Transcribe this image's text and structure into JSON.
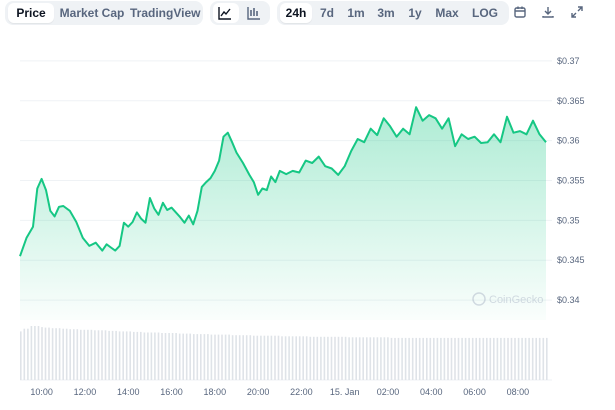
{
  "toolbar": {
    "view_tabs": [
      "Price",
      "Market Cap",
      "TradingView"
    ],
    "chart_types": [
      {
        "name": "line-chart-icon",
        "active": true
      },
      {
        "name": "candlestick-chart-icon",
        "active": false
      }
    ],
    "ranges": [
      "24h",
      "7d",
      "1m",
      "3m",
      "1y",
      "Max",
      "LOG"
    ],
    "active_range": "24h",
    "active_view": "Price",
    "actions": [
      "calendar-icon",
      "download-icon",
      "fullscreen-icon"
    ]
  },
  "watermark": "CoinGecko",
  "colors": {
    "line": "#16c784",
    "fill": "#16c784",
    "volume": "#dfe3e8",
    "grid": "#eff2f5"
  },
  "chart_data": {
    "type": "line",
    "ylim": [
      0.3375,
      0.3725
    ],
    "y_ticks": [
      "$0.37",
      "$0.365",
      "$0.36",
      "$0.355",
      "$0.35",
      "$0.345",
      "$0.34"
    ],
    "y_tick_values": [
      0.37,
      0.365,
      0.36,
      0.355,
      0.35,
      0.345,
      0.34
    ],
    "x_ticks": [
      "10:00",
      "12:00",
      "14:00",
      "16:00",
      "18:00",
      "20:00",
      "22:00",
      "15. Jan",
      "02:00",
      "04:00",
      "06:00",
      "08:00"
    ],
    "x_tick_hours": [
      10,
      12,
      14,
      16,
      18,
      20,
      22,
      24,
      26,
      28,
      30,
      32
    ],
    "x_range_hours": [
      9.0,
      33.3
    ],
    "x": [
      9.0,
      9.3,
      9.6,
      9.8,
      10.0,
      10.2,
      10.4,
      10.6,
      10.8,
      11.0,
      11.3,
      11.6,
      11.9,
      12.2,
      12.5,
      12.8,
      13.0,
      13.2,
      13.4,
      13.6,
      13.8,
      14.0,
      14.2,
      14.4,
      14.6,
      14.8,
      15.0,
      15.2,
      15.4,
      15.6,
      15.8,
      16.0,
      16.2,
      16.4,
      16.6,
      16.8,
      17.0,
      17.2,
      17.4,
      17.6,
      17.8,
      18.0,
      18.2,
      18.4,
      18.6,
      18.8,
      19.0,
      19.3,
      19.6,
      19.8,
      20.0,
      20.2,
      20.4,
      20.6,
      20.8,
      21.0,
      21.3,
      21.6,
      21.9,
      22.2,
      22.5,
      22.8,
      23.1,
      23.4,
      23.7,
      24.0,
      24.3,
      24.6,
      24.9,
      25.2,
      25.5,
      25.8,
      26.1,
      26.4,
      26.7,
      27.0,
      27.3,
      27.6,
      27.9,
      28.2,
      28.5,
      28.8,
      29.1,
      29.4,
      29.7,
      30.0,
      30.3,
      30.6,
      30.9,
      31.2,
      31.5,
      31.8,
      32.1,
      32.4,
      32.7,
      33.0,
      33.3
    ],
    "y": [
      0.3455,
      0.3478,
      0.3492,
      0.354,
      0.3552,
      0.3538,
      0.3512,
      0.3505,
      0.3517,
      0.3518,
      0.3512,
      0.3498,
      0.3478,
      0.3468,
      0.3472,
      0.3462,
      0.347,
      0.3466,
      0.3462,
      0.3468,
      0.3497,
      0.3492,
      0.3498,
      0.351,
      0.3502,
      0.3497,
      0.3528,
      0.3515,
      0.3507,
      0.3522,
      0.3513,
      0.3516,
      0.351,
      0.3504,
      0.3497,
      0.3506,
      0.3495,
      0.3512,
      0.3542,
      0.3548,
      0.3553,
      0.3562,
      0.3575,
      0.3605,
      0.361,
      0.3598,
      0.3585,
      0.3572,
      0.3557,
      0.3548,
      0.3532,
      0.354,
      0.3538,
      0.3555,
      0.3548,
      0.3562,
      0.3558,
      0.3562,
      0.356,
      0.3575,
      0.3572,
      0.358,
      0.3568,
      0.3565,
      0.3557,
      0.3568,
      0.3587,
      0.3602,
      0.3598,
      0.3615,
      0.3607,
      0.3628,
      0.3618,
      0.3605,
      0.3615,
      0.3608,
      0.3642,
      0.3625,
      0.3632,
      0.3628,
      0.3615,
      0.3628,
      0.3593,
      0.3608,
      0.3602,
      0.3605,
      0.3597,
      0.3598,
      0.3608,
      0.3598,
      0.363,
      0.361,
      0.3612,
      0.3608,
      0.3625,
      0.3608,
      0.3598
    ],
    "volume_relative": [
      0.9,
      0.95,
      1.0,
      1.0,
      0.98,
      0.97,
      0.96,
      0.96,
      0.95,
      0.94,
      0.94,
      0.93,
      0.93,
      0.93,
      0.92,
      0.92,
      0.91,
      0.91,
      0.9,
      0.9,
      0.9,
      0.89,
      0.89,
      0.88,
      0.88,
      0.88,
      0.87,
      0.87,
      0.87,
      0.86,
      0.86,
      0.86,
      0.85,
      0.85,
      0.85,
      0.84,
      0.84,
      0.84,
      0.84,
      0.83,
      0.83,
      0.83,
      0.83,
      0.82,
      0.82,
      0.82,
      0.82,
      0.82,
      0.81,
      0.81,
      0.81,
      0.81,
      0.81,
      0.8,
      0.8,
      0.8,
      0.8,
      0.8,
      0.8,
      0.8,
      0.79,
      0.79,
      0.79,
      0.79,
      0.79,
      0.79,
      0.79,
      0.79,
      0.78,
      0.78,
      0.78,
      0.78,
      0.78,
      0.78,
      0.78,
      0.78,
      0.78,
      0.78,
      0.78,
      0.78,
      0.78,
      0.78,
      0.78,
      0.78,
      0.78,
      0.78,
      0.78,
      0.78,
      0.78,
      0.78,
      0.78,
      0.78,
      0.78,
      0.78,
      0.78,
      0.78,
      0.78
    ],
    "grid": true
  }
}
